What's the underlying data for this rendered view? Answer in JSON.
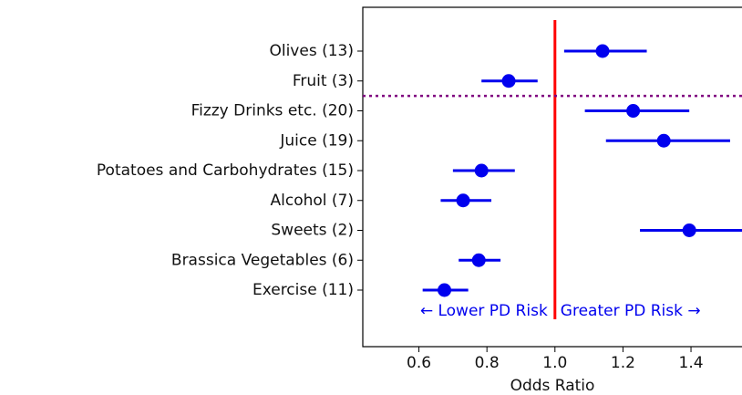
{
  "chart_data": {
    "type": "forest",
    "x_label": "Odds Ratio",
    "categories": [
      "Olives (13)",
      "Fruit (3)",
      "Fizzy Drinks etc. (20)",
      "Juice (19)",
      "Potatoes and Carbohydrates (15)",
      "Alcohol (7)",
      "Sweets (2)",
      "Brassica Vegetables (6)",
      "Exercise (11)"
    ],
    "values": [
      1.14,
      0.864,
      1.23,
      1.32,
      0.784,
      0.73,
      1.395,
      0.776,
      0.675
    ],
    "ci_low": [
      1.027,
      0.784,
      1.088,
      1.15,
      0.7,
      0.664,
      1.25,
      0.717,
      0.611
    ],
    "ci_high": [
      1.27,
      0.949,
      1.395,
      1.515,
      0.882,
      0.813,
      1.56,
      0.84,
      0.745
    ],
    "color": "#0000ee",
    "reference_line": {
      "value": 1,
      "color": "#ff0000"
    },
    "annotations": [
      "← Lower PD Risk",
      "Greater PD Risk →"
    ],
    "xlim": [
      0.435,
      1.55
    ],
    "xticks": [
      0.6,
      0.8,
      {
        "value": 1,
        "label": "1.0"
      },
      1.2,
      1.4
    ]
  }
}
